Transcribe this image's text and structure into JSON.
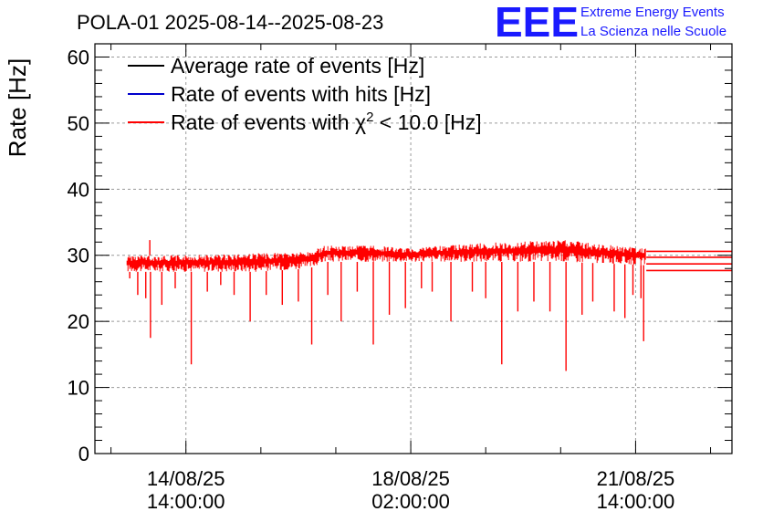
{
  "chart_data": {
    "type": "line",
    "title": "POLA-01 2025-08-14--2025-08-23",
    "ylabel": "Rate [Hz]",
    "xlabel": "",
    "ylim": [
      0,
      62
    ],
    "yticks": [
      0,
      10,
      20,
      30,
      40,
      50,
      60
    ],
    "xlim": [
      "2025-08-13 04:00",
      "2025-08-23 02:00"
    ],
    "xticks": [
      {
        "t": "2025-08-14 14:00",
        "date": "14/08/25",
        "time": "14:00:00"
      },
      {
        "t": "2025-08-18 02:00",
        "date": "18/08/25",
        "time": "02:00:00"
      },
      {
        "t": "2025-08-21 14:00",
        "date": "21/08/25",
        "time": "14:00:00"
      }
    ],
    "grid": true,
    "legend_position": "top-left",
    "series": [
      {
        "name": "Average rate of events [Hz]",
        "color": "#000000",
        "values": []
      },
      {
        "name": "Rate of events with hits [Hz]",
        "color": "#0000cc",
        "values": []
      },
      {
        "name": "Rate of events with χ² < 10.0 [Hz]",
        "legend_main": "Rate of events with χ",
        "legend_sup": "2",
        "legend_tail": " < 10.0 [Hz]",
        "color": "#ff0000",
        "x_range": [
          "2025-08-13 16:00",
          "2025-08-21 18:00"
        ],
        "band": [
          {
            "t": "2025-08-13 16:00",
            "low": 27.5,
            "high": 30.0
          },
          {
            "t": "2025-08-14 12:00",
            "low": 27.5,
            "high": 30.0
          },
          {
            "t": "2025-08-15 16:00",
            "low": 27.5,
            "high": 30.3
          },
          {
            "t": "2025-08-16 12:00",
            "low": 28.0,
            "high": 30.5
          },
          {
            "t": "2025-08-16 18:00",
            "low": 29.0,
            "high": 31.5
          },
          {
            "t": "2025-08-17 12:00",
            "low": 29.0,
            "high": 31.5
          },
          {
            "t": "2025-08-18 02:00",
            "low": 29.0,
            "high": 31.0
          },
          {
            "t": "2025-08-18 12:00",
            "low": 29.0,
            "high": 31.5
          },
          {
            "t": "2025-08-19 12:00",
            "low": 29.0,
            "high": 32.0
          },
          {
            "t": "2025-08-20 12:00",
            "low": 29.0,
            "high": 32.3
          },
          {
            "t": "2025-08-21 18:00",
            "low": 28.5,
            "high": 31.0
          }
        ],
        "dips": [
          {
            "t": "2025-08-13 17:00",
            "v": 26.5
          },
          {
            "t": "2025-08-13 20:00",
            "v": 24.0
          },
          {
            "t": "2025-08-13 23:00",
            "v": 23.5
          },
          {
            "t": "2025-08-14 00:30",
            "v": 32.3
          },
          {
            "t": "2025-08-14 00:45",
            "v": 17.5
          },
          {
            "t": "2025-08-14 05:00",
            "v": 22.5
          },
          {
            "t": "2025-08-14 10:00",
            "v": 25.0
          },
          {
            "t": "2025-08-14 16:00",
            "v": 13.5
          },
          {
            "t": "2025-08-14 22:00",
            "v": 24.5
          },
          {
            "t": "2025-08-15 03:00",
            "v": 25.5
          },
          {
            "t": "2025-08-15 08:00",
            "v": 24.0
          },
          {
            "t": "2025-08-15 14:00",
            "v": 20.0
          },
          {
            "t": "2025-08-15 20:00",
            "v": 24.0
          },
          {
            "t": "2025-08-16 02:00",
            "v": 22.5
          },
          {
            "t": "2025-08-16 08:00",
            "v": 23.0
          },
          {
            "t": "2025-08-16 13:00",
            "v": 16.5
          },
          {
            "t": "2025-08-16 19:00",
            "v": 24.0
          },
          {
            "t": "2025-08-17 00:00",
            "v": 20.0
          },
          {
            "t": "2025-08-17 06:00",
            "v": 24.5
          },
          {
            "t": "2025-08-17 12:00",
            "v": 16.5
          },
          {
            "t": "2025-08-17 18:00",
            "v": 21.0
          },
          {
            "t": "2025-08-18 00:00",
            "v": 22.0
          },
          {
            "t": "2025-08-18 06:00",
            "v": 25.0
          },
          {
            "t": "2025-08-18 10:00",
            "v": 24.5
          },
          {
            "t": "2025-08-18 17:00",
            "v": 20.0
          },
          {
            "t": "2025-08-19 01:00",
            "v": 24.5
          },
          {
            "t": "2025-08-19 06:00",
            "v": 23.5
          },
          {
            "t": "2025-08-19 12:00",
            "v": 13.5
          },
          {
            "t": "2025-08-19 18:00",
            "v": 21.5
          },
          {
            "t": "2025-08-20 00:00",
            "v": 23.0
          },
          {
            "t": "2025-08-20 06:00",
            "v": 21.5
          },
          {
            "t": "2025-08-20 12:00",
            "v": 12.5
          },
          {
            "t": "2025-08-20 18:00",
            "v": 21.0
          },
          {
            "t": "2025-08-20 22:00",
            "v": 23.0
          },
          {
            "t": "2025-08-21 06:00",
            "v": 21.5
          },
          {
            "t": "2025-08-21 10:00",
            "v": 20.5
          },
          {
            "t": "2025-08-21 13:00",
            "v": 24.0
          },
          {
            "t": "2025-08-21 16:00",
            "v": 23.5
          },
          {
            "t": "2025-08-21 17:00",
            "v": 17.0
          }
        ],
        "extension_lines": [
          27.7,
          28.7,
          29.7,
          30.6
        ]
      }
    ]
  },
  "logo": {
    "big": "EEE",
    "line1": "Extreme Energy Events",
    "line2": "La Scienza nelle Scuole"
  }
}
